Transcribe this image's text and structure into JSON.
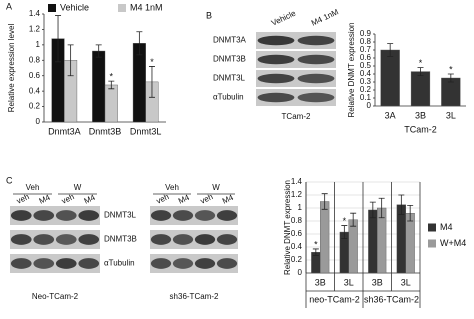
{
  "panel_labels": [
    "A",
    "B",
    "C"
  ],
  "blots": [
    {
      "rows": [
        "DNMT3A",
        "DNMT3B",
        "DNMT3L",
        "αTubulin"
      ],
      "lanes": [
        "Vehicle",
        "M4 1nM"
      ],
      "caption": "TCam-2"
    },
    {
      "groups": [
        "Veh",
        "W"
      ],
      "lanes": [
        "veh",
        "M4",
        "veh",
        "M4"
      ],
      "rows": [
        "DNMT3L",
        "DNMT3B",
        "αTubulin"
      ],
      "caption": "Neo-TCam-2"
    },
    {
      "groups": [
        "Veh",
        "W"
      ],
      "lanes": [
        "veh",
        "M4",
        "veh",
        "M4"
      ],
      "caption": "sh36-TCam-2"
    }
  ],
  "chart_data": [
    {
      "type": "bar",
      "y_label": "Relative expression level",
      "categories": [
        "Dnmt3A",
        "Dnmt3B",
        "Dnmt3L"
      ],
      "series": [
        {
          "name": "Vehicle",
          "color": "#111111",
          "values": [
            1.08,
            0.92,
            1.02
          ],
          "errors": [
            0.3,
            0.08,
            0.15
          ],
          "significance": [
            null,
            null,
            null
          ]
        },
        {
          "name": "M4 1nM",
          "color": "#c8c8c8",
          "values": [
            0.8,
            0.48,
            0.52
          ],
          "errors": [
            0.2,
            0.05,
            0.2
          ],
          "significance": [
            null,
            "*",
            "*"
          ]
        }
      ],
      "ylim": [
        0,
        1.4
      ],
      "yticks": [
        0,
        0.2,
        0.4,
        0.6,
        0.8,
        1,
        1.2,
        1.4
      ],
      "grid": false,
      "legend": "top"
    },
    {
      "type": "bar",
      "y_label": "Relative DNMT expression",
      "x_label": "TCam-2",
      "categories": [
        "3A",
        "3B",
        "3L"
      ],
      "series": [
        {
          "color": "#333333",
          "values": [
            0.7,
            0.43,
            0.35
          ],
          "errors": [
            0.08,
            0.05,
            0.05
          ],
          "significance": [
            null,
            "*",
            "*"
          ]
        }
      ],
      "ylim": [
        0,
        0.9
      ],
      "yticks": [
        0,
        0.1,
        0.2,
        0.3,
        0.4,
        0.5,
        0.6,
        0.7,
        0.8,
        0.9
      ],
      "grid": false
    },
    {
      "type": "bar",
      "y_label": "Relative DNMT expression",
      "categories": [
        "3B",
        "3L",
        "3B",
        "3L"
      ],
      "groups": [
        "neo-TCam-2",
        "sh36-TCam-2"
      ],
      "series": [
        {
          "name": "M4",
          "color": "#333333",
          "values": [
            0.32,
            0.63,
            0.97,
            1.05
          ],
          "errors": [
            0.05,
            0.1,
            0.12,
            0.15
          ],
          "significance": [
            "*",
            "*",
            null,
            null
          ]
        },
        {
          "name": "W+M4",
          "color": "#9a9a9a",
          "values": [
            1.1,
            0.82,
            1.0,
            0.92
          ],
          "errors": [
            0.12,
            0.1,
            0.15,
            0.12
          ],
          "significance": [
            null,
            null,
            null,
            null
          ]
        }
      ],
      "ylim": [
        0,
        1.4
      ],
      "yticks": [
        0,
        0.2,
        0.4,
        0.6,
        0.8,
        1,
        1.2,
        1.4
      ],
      "grid": true,
      "legend": "right"
    }
  ]
}
